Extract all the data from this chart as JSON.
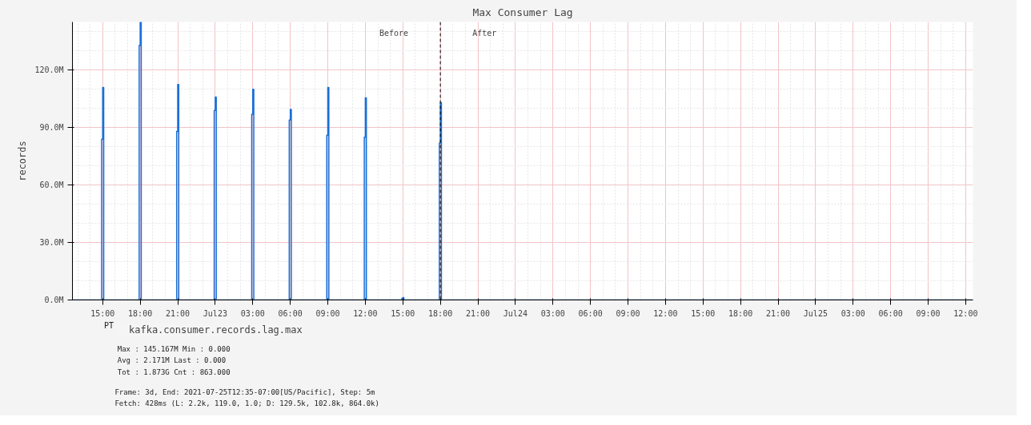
{
  "chart_data": {
    "type": "step",
    "title": "Max Consumer Lag",
    "ylabel": "records",
    "x": [
      "2021-07-22T12:35",
      "2021-07-22T14:50",
      "2021-07-22T14:55",
      "2021-07-22T15:00",
      "2021-07-22T15:05",
      "2021-07-22T17:50",
      "2021-07-22T17:55",
      "2021-07-22T18:00",
      "2021-07-22T18:05",
      "2021-07-22T20:50",
      "2021-07-22T20:55",
      "2021-07-22T21:00",
      "2021-07-22T21:05",
      "2021-07-22T23:50",
      "2021-07-22T23:55",
      "2021-07-23T00:00",
      "2021-07-23T00:05",
      "2021-07-23T02:50",
      "2021-07-23T02:55",
      "2021-07-23T03:00",
      "2021-07-23T03:05",
      "2021-07-23T05:50",
      "2021-07-23T05:55",
      "2021-07-23T06:00",
      "2021-07-23T06:05",
      "2021-07-23T08:50",
      "2021-07-23T08:55",
      "2021-07-23T09:00",
      "2021-07-23T09:05",
      "2021-07-23T11:50",
      "2021-07-23T11:55",
      "2021-07-23T12:00",
      "2021-07-23T12:05",
      "2021-07-23T14:50",
      "2021-07-23T14:55",
      "2021-07-23T15:00",
      "2021-07-23T15:05",
      "2021-07-23T17:50",
      "2021-07-23T17:55",
      "2021-07-23T18:00",
      "2021-07-23T18:05",
      "2021-07-25T12:35"
    ],
    "series": [
      {
        "name": "kafka.consumer.records.lag.max",
        "color": "#1a6fd6",
        "values": [
          0,
          0,
          84,
          111,
          0,
          0,
          133,
          145.167,
          0,
          0,
          88,
          112.5,
          0,
          0,
          99,
          106,
          0,
          0,
          97,
          110,
          0,
          0,
          94,
          99.5,
          0,
          0,
          86,
          111,
          0,
          0,
          85,
          105.5,
          0,
          0,
          0.8,
          1.2,
          0,
          0,
          82,
          103,
          0,
          0
        ]
      }
    ],
    "xlim": [
      "2021-07-22T12:35",
      "2021-07-25T12:35"
    ],
    "xticks": [
      {
        "value": "2021-07-22T15:00",
        "label": "15:00"
      },
      {
        "value": "2021-07-22T18:00",
        "label": "18:00"
      },
      {
        "value": "2021-07-22T21:00",
        "label": "21:00"
      },
      {
        "value": "2021-07-23T00:00",
        "label": "Jul23"
      },
      {
        "value": "2021-07-23T03:00",
        "label": "03:00"
      },
      {
        "value": "2021-07-23T06:00",
        "label": "06:00"
      },
      {
        "value": "2021-07-23T09:00",
        "label": "09:00"
      },
      {
        "value": "2021-07-23T12:00",
        "label": "12:00"
      },
      {
        "value": "2021-07-23T15:00",
        "label": "15:00"
      },
      {
        "value": "2021-07-23T18:00",
        "label": "18:00"
      },
      {
        "value": "2021-07-23T21:00",
        "label": "21:00"
      },
      {
        "value": "2021-07-24T00:00",
        "label": "Jul24"
      },
      {
        "value": "2021-07-24T03:00",
        "label": "03:00"
      },
      {
        "value": "2021-07-24T06:00",
        "label": "06:00"
      },
      {
        "value": "2021-07-24T09:00",
        "label": "09:00"
      },
      {
        "value": "2021-07-24T12:00",
        "label": "12:00"
      },
      {
        "value": "2021-07-24T15:00",
        "label": "15:00"
      },
      {
        "value": "2021-07-24T18:00",
        "label": "18:00"
      },
      {
        "value": "2021-07-24T21:00",
        "label": "21:00"
      },
      {
        "value": "2021-07-25T00:00",
        "label": "Jul25"
      },
      {
        "value": "2021-07-25T03:00",
        "label": "03:00"
      },
      {
        "value": "2021-07-25T06:00",
        "label": "06:00"
      },
      {
        "value": "2021-07-25T09:00",
        "label": "09:00"
      },
      {
        "value": "2021-07-25T12:00",
        "label": "12:00"
      }
    ],
    "ylim": [
      0,
      145.167
    ],
    "yticks": [
      {
        "value": 0,
        "label": "0.0M"
      },
      {
        "value": 30,
        "label": "30.0M"
      },
      {
        "value": 60,
        "label": "60.0M"
      },
      {
        "value": 90,
        "label": "90.0M"
      },
      {
        "value": 120,
        "label": "120.0M"
      }
    ],
    "ref_lines": [
      {
        "axis": "x",
        "value": "2021-07-23T18:00",
        "color": "#000000",
        "line_style": "dashed"
      }
    ],
    "annotations": [
      "Before",
      "After",
      "PT",
      "Max :   145.167M    Min  :     0.000",
      "Avg :     2.171M    Last :     0.000",
      "Tot :     1.873G    Cnt  :   863.000",
      "Frame: 3d, End: 2021-07-25T12:35-07:00[US/Pacific], Step: 5m",
      "Fetch: 428ms (L: 2.2k, 119.0, 1.0; D: 129.5k, 102.8k, 864.0k)"
    ],
    "grid": true,
    "legend": "bottom"
  }
}
